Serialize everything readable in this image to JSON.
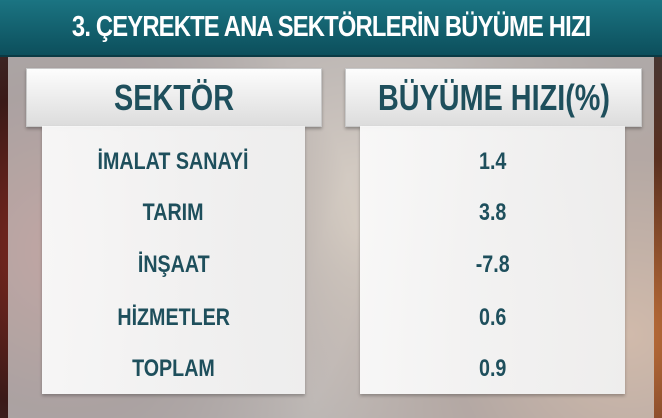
{
  "title": "3. ÇEYREKTE ANA SEKTÖRLERİN BÜYÜME HIZI",
  "colors": {
    "title_bar": "#0c4f5c",
    "text": "#1e4f5c"
  },
  "chart_data": {
    "type": "table",
    "title": "3. ÇEYREKTE ANA SEKTÖRLERİN BÜYÜME HIZI",
    "columns": [
      "SEKTÖR",
      "BÜYÜME HIZI(%)"
    ],
    "rows": [
      {
        "sector": "İMALAT SANAYİ",
        "value": "1.4"
      },
      {
        "sector": "TARIM",
        "value": "3.8"
      },
      {
        "sector": "İNŞAAT",
        "value": "-7.8"
      },
      {
        "sector": "HİZMETLER",
        "value": "0.6"
      },
      {
        "sector": "TOPLAM",
        "value": "0.9"
      }
    ]
  }
}
